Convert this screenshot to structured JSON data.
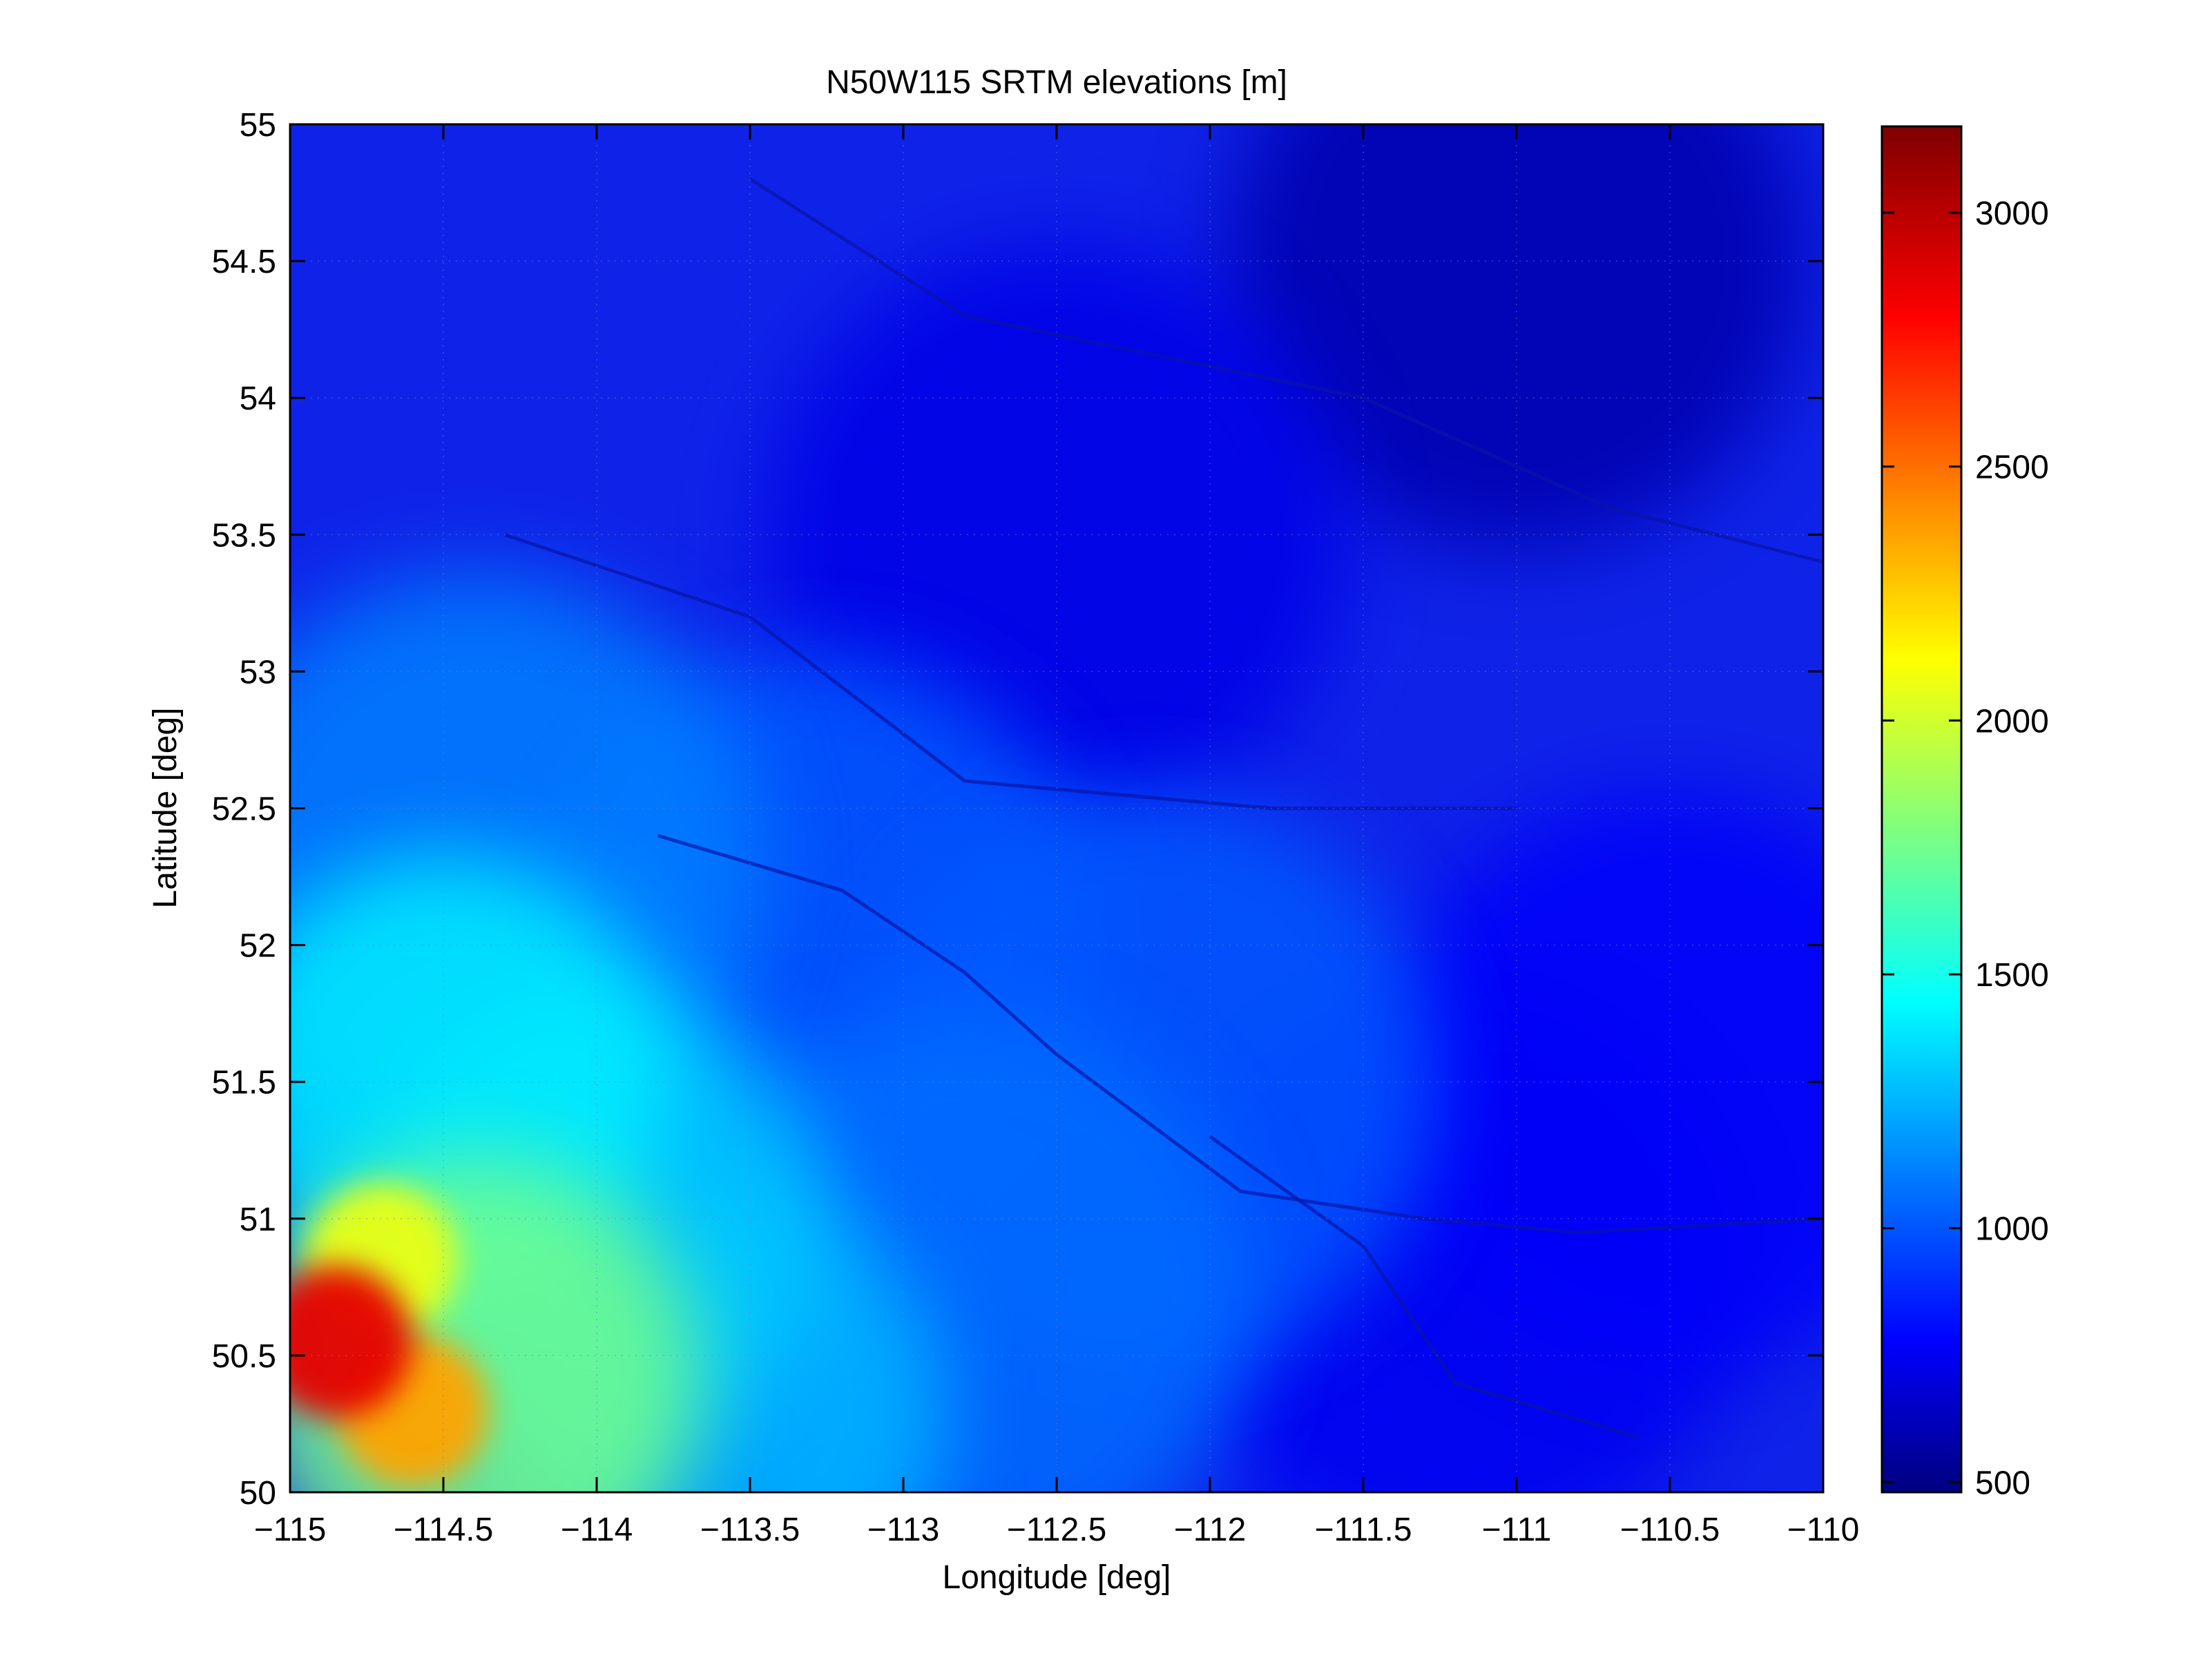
{
  "chart_data": {
    "type": "heatmap",
    "title": "N50W115 SRTM elevations [m]",
    "xlabel": "Longitude [deg]",
    "ylabel": "Latitude [deg]",
    "xlim": [
      -115,
      -110
    ],
    "ylim": [
      50,
      55
    ],
    "xticks": [
      "−115",
      "−114.5",
      "−114",
      "−113.5",
      "−113",
      "−112.5",
      "−112",
      "−111.5",
      "−111",
      "−110.5",
      "−110"
    ],
    "xtick_values": [
      -115,
      -114.5,
      -114,
      -113.5,
      -113,
      -112.5,
      -112,
      -111.5,
      -111,
      -110.5,
      -110
    ],
    "yticks": [
      "50",
      "50.5",
      "51",
      "51.5",
      "52",
      "52.5",
      "53",
      "53.5",
      "54",
      "54.5",
      "55"
    ],
    "ytick_values": [
      50,
      50.5,
      51,
      51.5,
      52,
      52.5,
      53,
      53.5,
      54,
      54.5,
      55
    ],
    "colorbar": {
      "colormap": "jet",
      "range": [
        480,
        3170
      ],
      "ticks": [
        "500",
        "1000",
        "1500",
        "2000",
        "2500",
        "3000"
      ],
      "tick_values": [
        500,
        1000,
        1500,
        2000,
        2500,
        3000
      ]
    },
    "grid": true,
    "elevation_features": [
      {
        "lon": -114.85,
        "lat": 50.55,
        "elevation": 2900
      },
      {
        "lon": -114.6,
        "lat": 50.3,
        "elevation": 2400
      },
      {
        "lon": -114.7,
        "lat": 50.85,
        "elevation": 2100
      },
      {
        "lon": -114.4,
        "lat": 50.4,
        "elevation": 1800
      },
      {
        "lon": -114.5,
        "lat": 51.5,
        "elevation": 1450
      },
      {
        "lon": -114.0,
        "lat": 51.0,
        "elevation": 1350
      },
      {
        "lon": -113.6,
        "lat": 50.3,
        "elevation": 1300
      },
      {
        "lon": -114.4,
        "lat": 52.3,
        "elevation": 1150
      },
      {
        "lon": -113.3,
        "lat": 52.0,
        "elevation": 1050
      },
      {
        "lon": -112.8,
        "lat": 50.7,
        "elevation": 1100
      },
      {
        "lon": -112.2,
        "lat": 51.5,
        "elevation": 1050
      },
      {
        "lon": -112.5,
        "lat": 53.5,
        "elevation": 750
      },
      {
        "lon": -111.0,
        "lat": 54.5,
        "elevation": 600
      },
      {
        "lon": -110.5,
        "lat": 51.5,
        "elevation": 800
      },
      {
        "lon": -111.2,
        "lat": 50.8,
        "elevation": 780
      }
    ],
    "rivers": [
      {
        "points": [
          [
            -113.8,
            52.4
          ],
          [
            -113.2,
            52.2
          ],
          [
            -112.8,
            51.9
          ],
          [
            -112.5,
            51.6
          ],
          [
            -111.9,
            51.1
          ],
          [
            -111.3,
            51.0
          ],
          [
            -110.8,
            50.95
          ],
          [
            -110.0,
            51.0
          ]
        ]
      },
      {
        "points": [
          [
            -113.5,
            54.8
          ],
          [
            -112.8,
            54.3
          ],
          [
            -111.5,
            54.0
          ],
          [
            -110.7,
            53.6
          ],
          [
            -110.0,
            53.4
          ]
        ]
      },
      {
        "points": [
          [
            -114.3,
            53.5
          ],
          [
            -113.5,
            53.2
          ],
          [
            -112.8,
            52.6
          ],
          [
            -111.8,
            52.5
          ],
          [
            -111.0,
            52.5
          ]
        ]
      },
      {
        "points": [
          [
            -112.0,
            51.3
          ],
          [
            -111.5,
            50.9
          ],
          [
            -111.2,
            50.4
          ],
          [
            -110.6,
            50.2
          ]
        ]
      }
    ]
  }
}
